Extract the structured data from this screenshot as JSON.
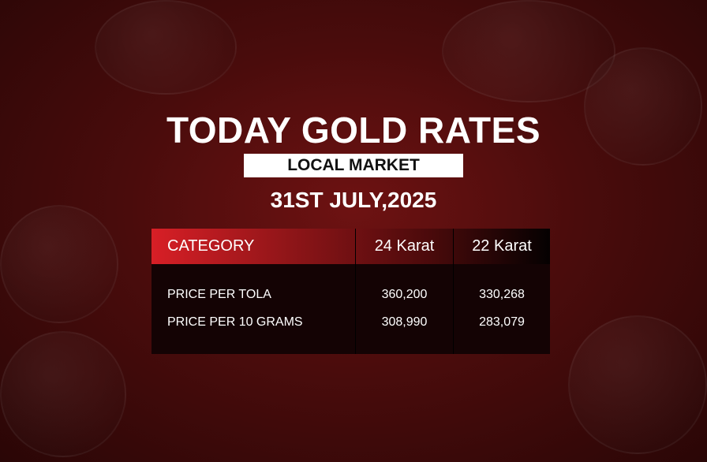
{
  "title": "TODAY GOLD RATES",
  "subtitle": "LOCAL MARKET",
  "date": "31ST JULY,2025",
  "table": {
    "headers": [
      "CATEGORY",
      "24 Karat",
      "22 Karat"
    ],
    "rows": [
      {
        "category": "PRICE PER TOLA",
        "k24": "360,200",
        "k22": "330,268"
      },
      {
        "category": "PRICE PER 10 GRAMS",
        "k24": "308,990",
        "k22": "283,079"
      }
    ]
  },
  "colors": {
    "accent": "#d81f26",
    "background": "#4a0c0c"
  }
}
